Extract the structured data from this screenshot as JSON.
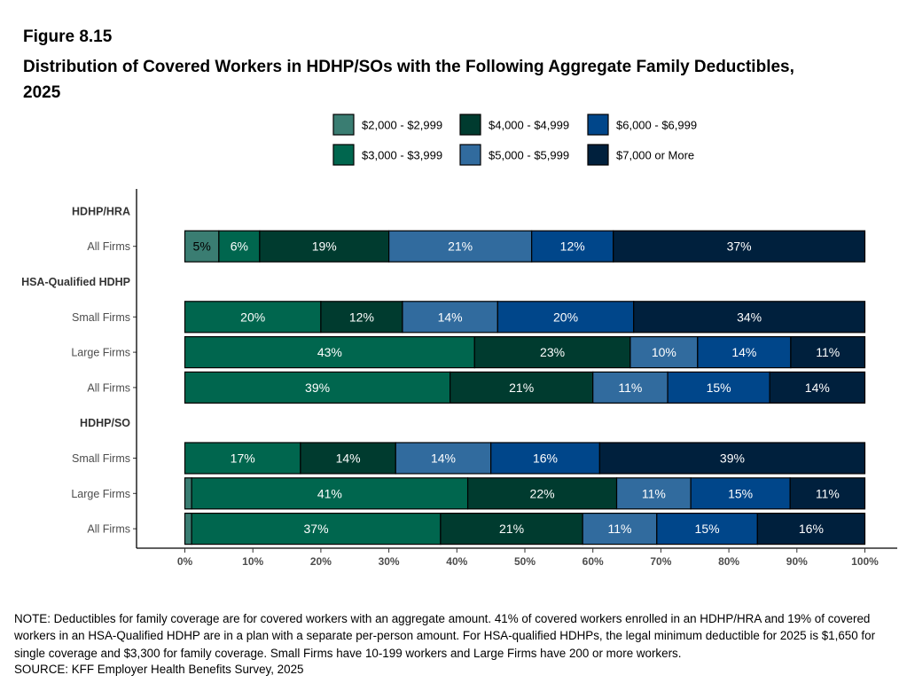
{
  "figure_label": "Figure 8.15",
  "title": "Distribution of Covered Workers in HDHP/SOs with the Following Aggregate Family Deductibles, 2025",
  "note": "NOTE: Deductibles for family coverage are for covered workers with an aggregate amount. 41% of covered workers enrolled in an HDHP/HRA and 19% of covered workers in an HSA-Qualified HDHP are in a plan with a separate per-person amount. For HSA-qualified HDHPs, the legal minimum deductible for 2025 is $1,650 for single coverage and $3,300 for family coverage. Small Firms have 10-199 workers and Large Firms have 200 or more workers.",
  "source": "SOURCE: KFF Employer Health Benefits Survey, 2025",
  "chart_data": {
    "type": "bar",
    "orientation": "horizontal",
    "stacked": true,
    "xlim": [
      0,
      100
    ],
    "x_ticks": [
      "0%",
      "10%",
      "20%",
      "30%",
      "40%",
      "50%",
      "60%",
      "70%",
      "80%",
      "90%",
      "100%"
    ],
    "legend_position": "top",
    "series": [
      {
        "name": "$2,000 - $2,999",
        "color": "#3a7d72"
      },
      {
        "name": "$3,000 - $3,999",
        "color": "#00664e"
      },
      {
        "name": "$4,000 - $4,999",
        "color": "#003b2f"
      },
      {
        "name": "$5,000 - $5,999",
        "color": "#316b9e"
      },
      {
        "name": "$6,000 - $6,999",
        "color": "#00468a"
      },
      {
        "name": "$7,000 or More",
        "color": "#00203d"
      }
    ],
    "rows": [
      {
        "label": "HDHP/HRA",
        "header": true
      },
      {
        "label": "All Firms",
        "values": [
          5,
          6,
          19,
          21,
          12,
          37
        ],
        "labels": [
          "5%",
          "6%",
          "19%",
          "21%",
          "12%",
          "37%"
        ]
      },
      {
        "label": "HSA-Qualified HDHP",
        "header": true
      },
      {
        "label": "Small Firms",
        "values": [
          0,
          20,
          12,
          14,
          20,
          34
        ],
        "labels": [
          "",
          "20%",
          "12%",
          "14%",
          "20%",
          "34%"
        ]
      },
      {
        "label": "Large Firms",
        "values": [
          0,
          42.6,
          22.9,
          9.9,
          13.7,
          10.9
        ],
        "labels": [
          "",
          "43%",
          "23%",
          "10%",
          "14%",
          "11%"
        ]
      },
      {
        "label": "All Firms",
        "values": [
          0,
          39,
          21,
          11,
          15,
          14
        ],
        "labels": [
          "",
          "39%",
          "21%",
          "11%",
          "15%",
          "14%"
        ]
      },
      {
        "label": "HDHP/SO",
        "header": true
      },
      {
        "label": "Small Firms",
        "values": [
          0,
          17,
          14,
          14,
          16,
          39
        ],
        "labels": [
          "",
          "17%",
          "14%",
          "14%",
          "16%",
          "39%"
        ]
      },
      {
        "label": "Large Firms",
        "values": [
          1,
          40.6,
          21.9,
          10.9,
          14.6,
          11
        ],
        "labels": [
          "",
          "41%",
          "22%",
          "11%",
          "15%",
          "11%"
        ]
      },
      {
        "label": "All Firms",
        "values": [
          1,
          36.6,
          20.9,
          10.9,
          14.8,
          15.8
        ],
        "labels": [
          "",
          "37%",
          "21%",
          "11%",
          "15%",
          "16%"
        ]
      }
    ]
  }
}
